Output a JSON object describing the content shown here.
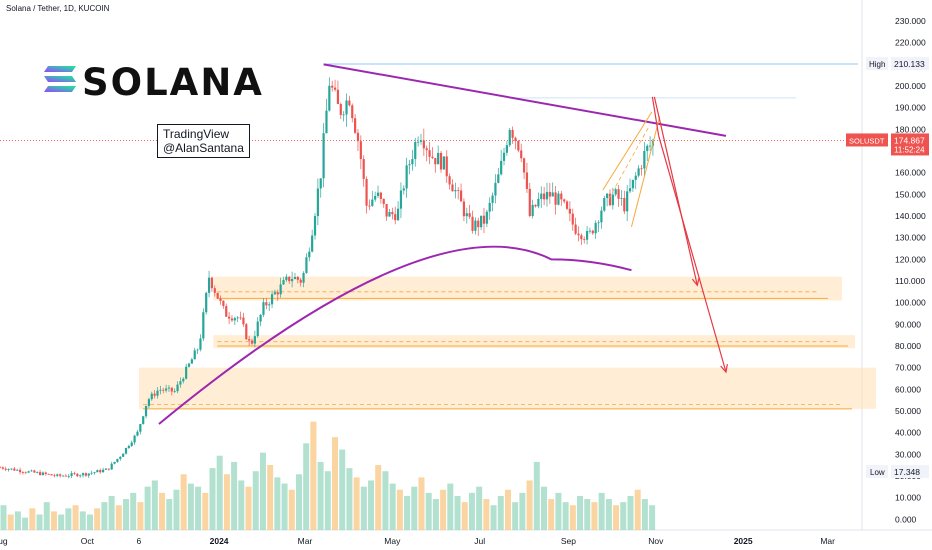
{
  "header": {
    "title": "Solana / Tether, 1D, KUCOIN"
  },
  "watermark": {
    "line1": "TradingView",
    "line2": "@AlanSantana"
  },
  "logo": {
    "text": "SOLANA",
    "colors": [
      "#9945FF",
      "#14F195"
    ]
  },
  "chart_data": {
    "type": "candlestick",
    "symbol": "SOLUSDT",
    "yaxis": {
      "position": "right",
      "ticks": [
        "230.000",
        "220.000",
        "210.000",
        "200.000",
        "190.000",
        "180.000",
        "170.000",
        "160.000",
        "150.000",
        "140.000",
        "130.000",
        "120.000",
        "110.000",
        "100.000",
        "90.000",
        "80.000",
        "70.000",
        "60.000",
        "50.000",
        "40.000",
        "30.000",
        "20.000",
        "10.000",
        "0.000"
      ],
      "ylim": [
        -4,
        236
      ]
    },
    "xaxis": {
      "ticks": [
        "Aug",
        "Oct",
        "6",
        "2024",
        "Mar",
        "May",
        "Jul",
        "Sep",
        "Nov",
        "2025",
        "Mar"
      ],
      "bold_ticks": [
        "2024",
        "2025"
      ],
      "xlim": [
        "2023-08-01",
        "2025-03-25"
      ]
    },
    "badges": {
      "high": {
        "label": "High",
        "value": "210.133"
      },
      "low": {
        "label": "Low",
        "value": "17.348"
      },
      "price": {
        "symbol": "SOLUSDT",
        "value": "174.867",
        "countdown": "11:52:24"
      }
    },
    "price_series": [
      [
        "2023-08-01",
        24
      ],
      [
        "2023-08-20",
        22
      ],
      [
        "2023-09-10",
        20
      ],
      [
        "2023-09-30",
        21
      ],
      [
        "2023-10-15",
        23
      ],
      [
        "2023-10-25",
        30
      ],
      [
        "2023-11-05",
        40
      ],
      [
        "2023-11-12",
        55
      ],
      [
        "2023-11-20",
        60
      ],
      [
        "2023-12-01",
        59
      ],
      [
        "2023-12-10",
        70
      ],
      [
        "2023-12-18",
        80
      ],
      [
        "2023-12-25",
        112
      ],
      [
        "2024-01-05",
        95
      ],
      [
        "2024-01-15",
        93
      ],
      [
        "2024-01-23",
        80
      ],
      [
        "2024-02-01",
        98
      ],
      [
        "2024-02-10",
        105
      ],
      [
        "2024-02-20",
        112
      ],
      [
        "2024-02-28",
        110
      ],
      [
        "2024-03-05",
        130
      ],
      [
        "2024-03-12",
        160
      ],
      [
        "2024-03-18",
        202
      ],
      [
        "2024-03-25",
        188
      ],
      [
        "2024-04-01",
        195
      ],
      [
        "2024-04-08",
        172
      ],
      [
        "2024-04-13",
        145
      ],
      [
        "2024-04-20",
        150
      ],
      [
        "2024-04-28",
        140
      ],
      [
        "2024-05-05",
        142
      ],
      [
        "2024-05-10",
        158
      ],
      [
        "2024-05-20",
        180
      ],
      [
        "2024-05-28",
        168
      ],
      [
        "2024-06-05",
        165
      ],
      [
        "2024-06-15",
        150
      ],
      [
        "2024-06-25",
        135
      ],
      [
        "2024-07-05",
        138
      ],
      [
        "2024-07-15",
        160
      ],
      [
        "2024-07-22",
        182
      ],
      [
        "2024-07-30",
        170
      ],
      [
        "2024-08-05",
        140
      ],
      [
        "2024-08-12",
        148
      ],
      [
        "2024-08-20",
        150
      ],
      [
        "2024-08-28",
        145
      ],
      [
        "2024-09-05",
        135
      ],
      [
        "2024-09-15",
        130
      ],
      [
        "2024-09-25",
        145
      ],
      [
        "2024-10-03",
        150
      ],
      [
        "2024-10-10",
        145
      ],
      [
        "2024-10-18",
        158
      ],
      [
        "2024-10-25",
        170
      ],
      [
        "2024-10-31",
        174.867
      ]
    ],
    "volume_bars": [
      8,
      5,
      6,
      4,
      7,
      5,
      9,
      6,
      5,
      7,
      8,
      6,
      5,
      7,
      9,
      11,
      8,
      10,
      12,
      9,
      14,
      16,
      12,
      10,
      13,
      18,
      15,
      14,
      12,
      20,
      24,
      18,
      22,
      16,
      14,
      19,
      25,
      21,
      17,
      15,
      13,
      18,
      28,
      35,
      22,
      19,
      30,
      26,
      20,
      17,
      14,
      16,
      21,
      19,
      15,
      13,
      11,
      14,
      17,
      12,
      10,
      13,
      15,
      11,
      9,
      12,
      14,
      10,
      8,
      11,
      13,
      9,
      12,
      16,
      22,
      14,
      10,
      12,
      9,
      8,
      11,
      10,
      9,
      12,
      10,
      8,
      9,
      11,
      13,
      10,
      8
    ],
    "volume_range": [
      0,
      42
    ],
    "levels": {
      "ath_line": 210.133,
      "rect_top": {
        "range": [
          101,
          112
        ],
        "line": 102,
        "dash": 105
      },
      "rect_mid": {
        "range": [
          79,
          85
        ],
        "line": 80,
        "dash": 82
      },
      "rect_low": {
        "range": [
          51,
          70
        ],
        "line": 51,
        "dash": 53
      },
      "current_price_line": 174.867
    },
    "trendline": [
      [
        "2024-03-14",
        210
      ],
      [
        "2024-12-20",
        177
      ]
    ],
    "arc": {
      "from": [
        "2023-11-20",
        44
      ],
      "peak": [
        "2024-08-20",
        120
      ],
      "to": [
        "2024-10-15",
        115
      ]
    },
    "arrows": [
      {
        "from": [
          "2024-10-31",
          195
        ],
        "to": [
          "2024-11-30",
          108
        ]
      },
      {
        "from": [
          "2024-11-03",
          177
        ],
        "to": [
          "2024-12-20",
          68
        ]
      }
    ],
    "colors": {
      "up": "#26a69a",
      "down": "#ef5350",
      "trend": "#9c27b0",
      "zone": "#ffe0b2",
      "level": "#f7a93a",
      "ath": "#90caf9",
      "arrow": "#e53945"
    }
  }
}
